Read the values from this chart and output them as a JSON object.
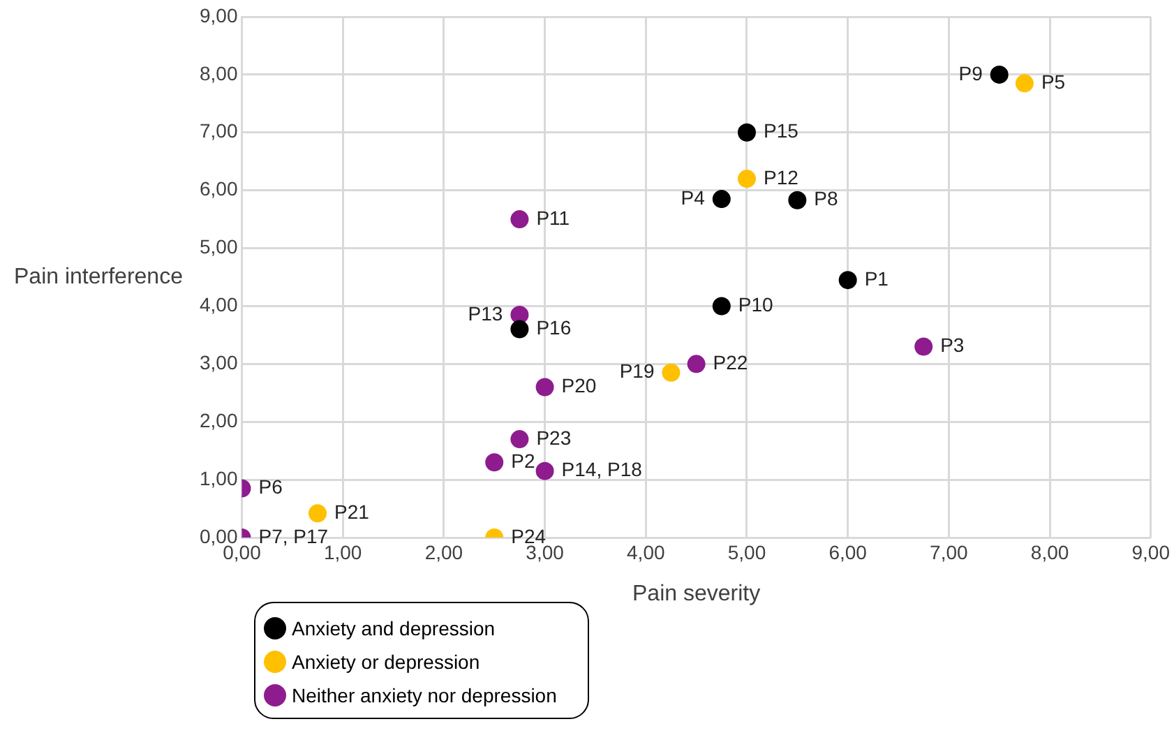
{
  "chart_data": {
    "type": "scatter",
    "xlabel": "Pain severity",
    "ylabel": "Pain interference",
    "xlim": [
      0,
      9
    ],
    "ylim": [
      0,
      9
    ],
    "xticks": [
      {
        "value": 0,
        "label": "0,00"
      },
      {
        "value": 1,
        "label": "1,00"
      },
      {
        "value": 2,
        "label": "2,00"
      },
      {
        "value": 3,
        "label": "3,00"
      },
      {
        "value": 4,
        "label": "4,00"
      },
      {
        "value": 5,
        "label": "5,00"
      },
      {
        "value": 6,
        "label": "6,00"
      },
      {
        "value": 7,
        "label": "7,00"
      },
      {
        "value": 8,
        "label": "8,00"
      },
      {
        "value": 9,
        "label": "9,00"
      }
    ],
    "yticks": [
      {
        "value": 0,
        "label": "0,00"
      },
      {
        "value": 1,
        "label": "1,00"
      },
      {
        "value": 2,
        "label": "2,00"
      },
      {
        "value": 3,
        "label": "3,00"
      },
      {
        "value": 4,
        "label": "4,00"
      },
      {
        "value": 5,
        "label": "5,00"
      },
      {
        "value": 6,
        "label": "6,00"
      },
      {
        "value": 7,
        "label": "7,00"
      },
      {
        "value": 8,
        "label": "8,00"
      },
      {
        "value": 9,
        "label": "9,00"
      }
    ],
    "grid": true,
    "legend": "bottom left",
    "marker": "circle",
    "series": [
      {
        "name": "Anxiety and depression",
        "color": "#000000",
        "x": [
          7.5,
          5.0,
          4.75,
          5.5,
          6.0,
          4.75,
          2.75
        ],
        "values": [
          8.0,
          7.0,
          5.85,
          5.83,
          4.45,
          4.0,
          3.6
        ]
      },
      {
        "name": "Anxiety or depression",
        "color": "#ffc000",
        "x": [
          7.75,
          5.0,
          4.25,
          0.75,
          2.5
        ],
        "values": [
          7.85,
          6.2,
          2.85,
          0.42,
          0
        ]
      },
      {
        "name": "Neither anxiety nor depression",
        "color": "#8e1c8e",
        "x": [
          2.75,
          2.75,
          6.75,
          4.5,
          3.0,
          2.75,
          2.5,
          3.0,
          0,
          0
        ],
        "values": [
          5.5,
          3.85,
          3.3,
          3.0,
          2.6,
          1.7,
          1.3,
          1.15,
          0.85,
          0
        ]
      }
    ],
    "annotations": [
      {
        "text": "P9",
        "x": 7.5,
        "y": 8.0
      },
      {
        "text": "P15",
        "x": 5.0,
        "y": 7.0
      },
      {
        "text": "P4",
        "x": 4.75,
        "y": 5.85
      },
      {
        "text": "P8",
        "x": 5.5,
        "y": 5.83
      },
      {
        "text": "P1",
        "x": 6.0,
        "y": 4.45
      },
      {
        "text": "P10",
        "x": 4.75,
        "y": 4.0
      },
      {
        "text": "P16",
        "x": 2.75,
        "y": 3.6
      },
      {
        "text": "P5",
        "x": 7.75,
        "y": 7.85
      },
      {
        "text": "P12",
        "x": 5.0,
        "y": 6.2
      },
      {
        "text": "P19",
        "x": 4.25,
        "y": 2.85
      },
      {
        "text": "P21",
        "x": 0.75,
        "y": 0.42
      },
      {
        "text": "P24",
        "x": 2.5,
        "y": 0
      },
      {
        "text": "P11",
        "x": 2.75,
        "y": 5.5
      },
      {
        "text": "P13",
        "x": 2.75,
        "y": 3.85
      },
      {
        "text": "P3",
        "x": 6.75,
        "y": 3.3
      },
      {
        "text": "P22",
        "x": 4.5,
        "y": 3.0
      },
      {
        "text": "P20",
        "x": 3.0,
        "y": 2.6
      },
      {
        "text": "P23",
        "x": 2.75,
        "y": 1.7
      },
      {
        "text": "P2",
        "x": 2.5,
        "y": 1.3
      },
      {
        "text": "P14, P18",
        "x": 3.0,
        "y": 1.15
      },
      {
        "text": "P6",
        "x": 0,
        "y": 0.85
      },
      {
        "text": "P7, P17",
        "x": 0,
        "y": 0
      }
    ]
  }
}
